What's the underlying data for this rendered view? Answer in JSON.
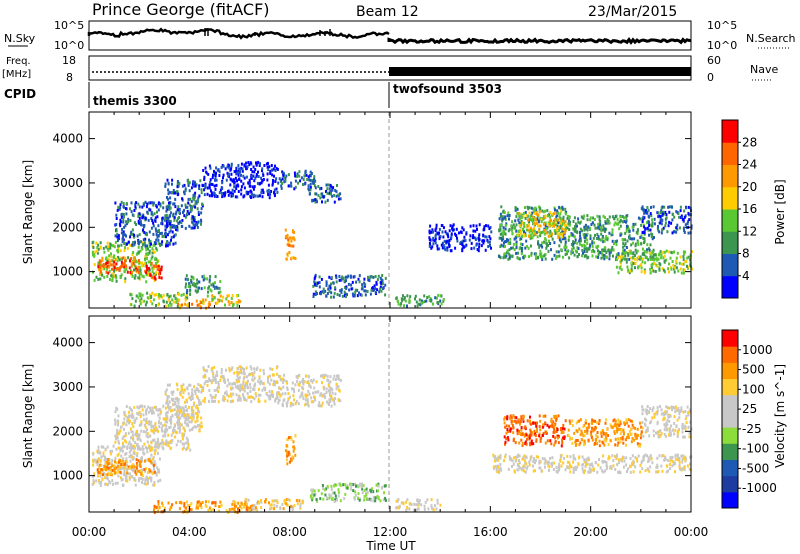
{
  "header": {
    "station": "Prince George (fitACF)",
    "beam": "Beam 12",
    "date": "23/Mar/2015"
  },
  "top_panels": {
    "nsky_label": "N.Sky",
    "nsearch_label": "N.Search",
    "noise_ticks": [
      "10^5",
      "10^0"
    ],
    "freq_label_1": "Freq.",
    "freq_label_2": "[MHz]",
    "freq_ticks": [
      "18",
      "8"
    ],
    "nave_label": "Nave",
    "nave_ticks": [
      "60",
      "0"
    ],
    "cpid_label": "CPID",
    "cpid_segments": [
      {
        "name": "themis 3300",
        "start_hour": 0,
        "end_hour": 12
      },
      {
        "name": "twofsound 3503",
        "start_hour": 12,
        "end_hour": 24
      }
    ]
  },
  "colors": {
    "power": [
      "#0000ff",
      "#1e5ab4",
      "#3c9650",
      "#5ac832",
      "#ffcc00",
      "#ff9900",
      "#ff6600",
      "#ff0000"
    ],
    "velocity": [
      "#ff0000",
      "#ff6a00",
      "#ff9900",
      "#ffcc33",
      "#c8c8c8",
      "#c8c8c8",
      "#8cdc3c",
      "#3c9650",
      "#1e5ab4",
      "#1e3ca0",
      "#0000ff"
    ],
    "ground_scatter": "#c8c8c8"
  },
  "chart_data": [
    {
      "type": "heatmap",
      "title": "",
      "xlabel": "Time UT",
      "ylabel": "Slant Range [km]",
      "x_ticks": [
        "00:00",
        "04:00",
        "08:00",
        "12:00",
        "16:00",
        "20:00",
        "00:00"
      ],
      "x_tick_hours": [
        0,
        4,
        8,
        12,
        16,
        20,
        24
      ],
      "xlim_hours": [
        0,
        24
      ],
      "y_ticks": [
        1000,
        2000,
        3000,
        4000
      ],
      "ylim": [
        180,
        4600
      ],
      "colorbar": {
        "label": "Power [dB]",
        "ticks": [
          4,
          8,
          12,
          16,
          20,
          24,
          28
        ],
        "range": [
          0,
          32
        ]
      },
      "regions": [
        {
          "t0": 0.1,
          "t1": 2.8,
          "r0": 800,
          "r1": 1700,
          "level": 3
        },
        {
          "t0": 0.3,
          "t1": 2.0,
          "r0": 1000,
          "r1": 1350,
          "level": 6
        },
        {
          "t0": 2.2,
          "t1": 2.9,
          "r0": 850,
          "r1": 1250,
          "level": 7
        },
        {
          "t0": 1.0,
          "t1": 3.5,
          "r0": 1600,
          "r1": 2600,
          "level": 1
        },
        {
          "t0": 3.0,
          "t1": 4.5,
          "r0": 2000,
          "r1": 3100,
          "level": 1
        },
        {
          "t0": 4.5,
          "t1": 7.5,
          "r0": 2700,
          "r1": 3500,
          "level": 0
        },
        {
          "t0": 7.5,
          "t1": 9.0,
          "r0": 2900,
          "r1": 3300,
          "level": 1
        },
        {
          "t0": 8.7,
          "t1": 10.0,
          "r0": 2600,
          "r1": 3000,
          "level": 1
        },
        {
          "t0": 1.5,
          "t1": 4.0,
          "r0": 250,
          "r1": 550,
          "level": 3
        },
        {
          "t0": 3.5,
          "t1": 4.8,
          "r0": 200,
          "r1": 400,
          "level": 5
        },
        {
          "t0": 4.5,
          "t1": 6.0,
          "r0": 250,
          "r1": 500,
          "level": 4
        },
        {
          "t0": 3.8,
          "t1": 5.2,
          "r0": 550,
          "r1": 950,
          "level": 2
        },
        {
          "t0": 8.9,
          "t1": 11.8,
          "r0": 450,
          "r1": 950,
          "level": 1
        },
        {
          "t0": 7.8,
          "t1": 8.2,
          "r0": 1300,
          "r1": 2000,
          "level": 5
        },
        {
          "t0": 12.2,
          "t1": 14.2,
          "r0": 250,
          "r1": 500,
          "level": 2
        },
        {
          "t0": 16.3,
          "t1": 19.0,
          "r0": 1300,
          "r1": 2500,
          "level": 2
        },
        {
          "t0": 17.0,
          "t1": 19.0,
          "r0": 1800,
          "r1": 2400,
          "level": 4
        },
        {
          "t0": 19.0,
          "t1": 22.5,
          "r0": 1300,
          "r1": 2300,
          "level": 2
        },
        {
          "t0": 21.0,
          "t1": 24.0,
          "r0": 1000,
          "r1": 1500,
          "level": 3
        },
        {
          "t0": 22.0,
          "t1": 24.0,
          "r0": 1900,
          "r1": 2500,
          "level": 1
        },
        {
          "t0": 13.5,
          "t1": 16.0,
          "r0": 1500,
          "r1": 2100,
          "level": 0
        }
      ]
    },
    {
      "type": "heatmap",
      "title": "",
      "xlabel": "Time UT",
      "ylabel": "Slant Range [km]",
      "x_ticks": [
        "00:00",
        "04:00",
        "08:00",
        "12:00",
        "16:00",
        "20:00",
        "00:00"
      ],
      "x_tick_hours": [
        0,
        4,
        8,
        12,
        16,
        20,
        24
      ],
      "xlim_hours": [
        0,
        24
      ],
      "y_ticks": [
        1000,
        2000,
        3000,
        4000
      ],
      "ylim": [
        180,
        4600
      ],
      "colorbar": {
        "label": "Velocity [m s^-1]",
        "ticks": [
          "1000",
          "500",
          "100",
          "25",
          "-25",
          "-100",
          "-500",
          "-1000"
        ]
      },
      "regions": [
        {
          "t0": 0.1,
          "t1": 2.8,
          "r0": 800,
          "r1": 1700,
          "level": 4
        },
        {
          "t0": 0.3,
          "t1": 2.6,
          "r0": 1050,
          "r1": 1400,
          "level": 2
        },
        {
          "t0": 1.0,
          "t1": 4.0,
          "r0": 1600,
          "r1": 2600,
          "level": 4
        },
        {
          "t0": 3.0,
          "t1": 4.5,
          "r0": 2000,
          "r1": 3100,
          "level": 4
        },
        {
          "t0": 4.5,
          "t1": 7.5,
          "r0": 2700,
          "r1": 3500,
          "level": 4
        },
        {
          "t0": 7.5,
          "t1": 10.0,
          "r0": 2600,
          "r1": 3300,
          "level": 4
        },
        {
          "t0": 2.5,
          "t1": 6.5,
          "r0": 200,
          "r1": 450,
          "level": 2
        },
        {
          "t0": 6.0,
          "t1": 8.5,
          "r0": 250,
          "r1": 500,
          "level": 3
        },
        {
          "t0": 8.8,
          "t1": 11.8,
          "r0": 450,
          "r1": 850,
          "level": 6
        },
        {
          "t0": 7.8,
          "t1": 8.2,
          "r0": 1300,
          "r1": 2000,
          "level": 2
        },
        {
          "t0": 12.2,
          "t1": 14.0,
          "r0": 250,
          "r1": 500,
          "level": 4
        },
        {
          "t0": 16.5,
          "t1": 19.0,
          "r0": 1700,
          "r1": 2400,
          "level": 1
        },
        {
          "t0": 19.0,
          "t1": 22.0,
          "r0": 1700,
          "r1": 2300,
          "level": 2
        },
        {
          "t0": 16.0,
          "t1": 24.0,
          "r0": 1100,
          "r1": 1500,
          "level": 4
        },
        {
          "t0": 22.0,
          "t1": 24.0,
          "r0": 1900,
          "r1": 2600,
          "level": 4
        }
      ]
    }
  ]
}
